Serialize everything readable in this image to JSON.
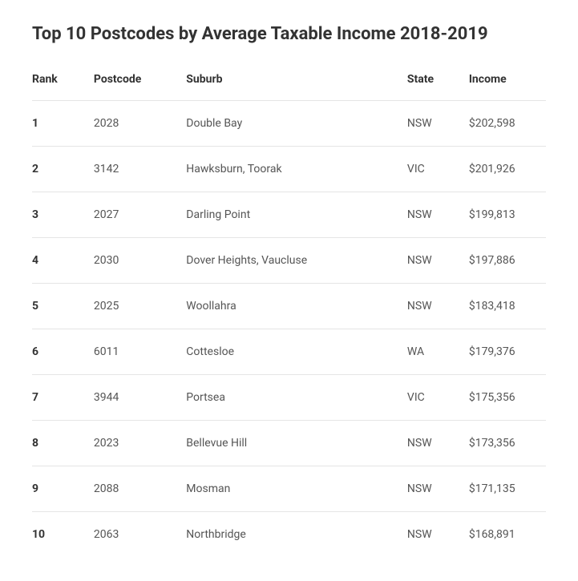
{
  "title": "Top 10 Postcodes by Average Taxable Income 2018-2019",
  "table": {
    "columns": [
      "Rank",
      "Postcode",
      "Suburb",
      "State",
      "Income"
    ],
    "rows": [
      {
        "rank": "1",
        "postcode": "2028",
        "suburb": "Double Bay",
        "state": "NSW",
        "income": "$202,598"
      },
      {
        "rank": "2",
        "postcode": "3142",
        "suburb": "Hawksburn, Toorak",
        "state": "VIC",
        "income": "$201,926"
      },
      {
        "rank": "3",
        "postcode": "2027",
        "suburb": "Darling Point",
        "state": "NSW",
        "income": "$199,813"
      },
      {
        "rank": "4",
        "postcode": "2030",
        "suburb": "Dover Heights, Vaucluse",
        "state": "NSW",
        "income": "$197,886"
      },
      {
        "rank": "5",
        "postcode": "2025",
        "suburb": "Woollahra",
        "state": "NSW",
        "income": "$183,418"
      },
      {
        "rank": "6",
        "postcode": "6011",
        "suburb": "Cottesloe",
        "state": "WA",
        "income": "$179,376"
      },
      {
        "rank": "7",
        "postcode": "3944",
        "suburb": "Portsea",
        "state": "VIC",
        "income": "$175,356"
      },
      {
        "rank": "8",
        "postcode": "2023",
        "suburb": "Bellevue Hill",
        "state": "NSW",
        "income": "$173,356"
      },
      {
        "rank": "9",
        "postcode": "2088",
        "suburb": "Mosman",
        "state": "NSW",
        "income": "$171,135"
      },
      {
        "rank": "10",
        "postcode": "2063",
        "suburb": "Northbridge",
        "state": "NSW",
        "income": "$168,891"
      }
    ],
    "styling": {
      "title_fontsize": 22,
      "title_fontweight": 700,
      "header_fontsize": 14,
      "header_fontweight": 700,
      "cell_fontsize": 14,
      "title_color": "#333333",
      "header_color": "#333333",
      "cell_color": "#555555",
      "rank_color": "#333333",
      "rank_fontweight": 700,
      "border_color": "#e5e5e5",
      "background_color": "#ffffff",
      "row_padding_vertical": 20,
      "column_widths_pct": [
        12,
        18,
        43,
        12,
        15
      ]
    }
  }
}
